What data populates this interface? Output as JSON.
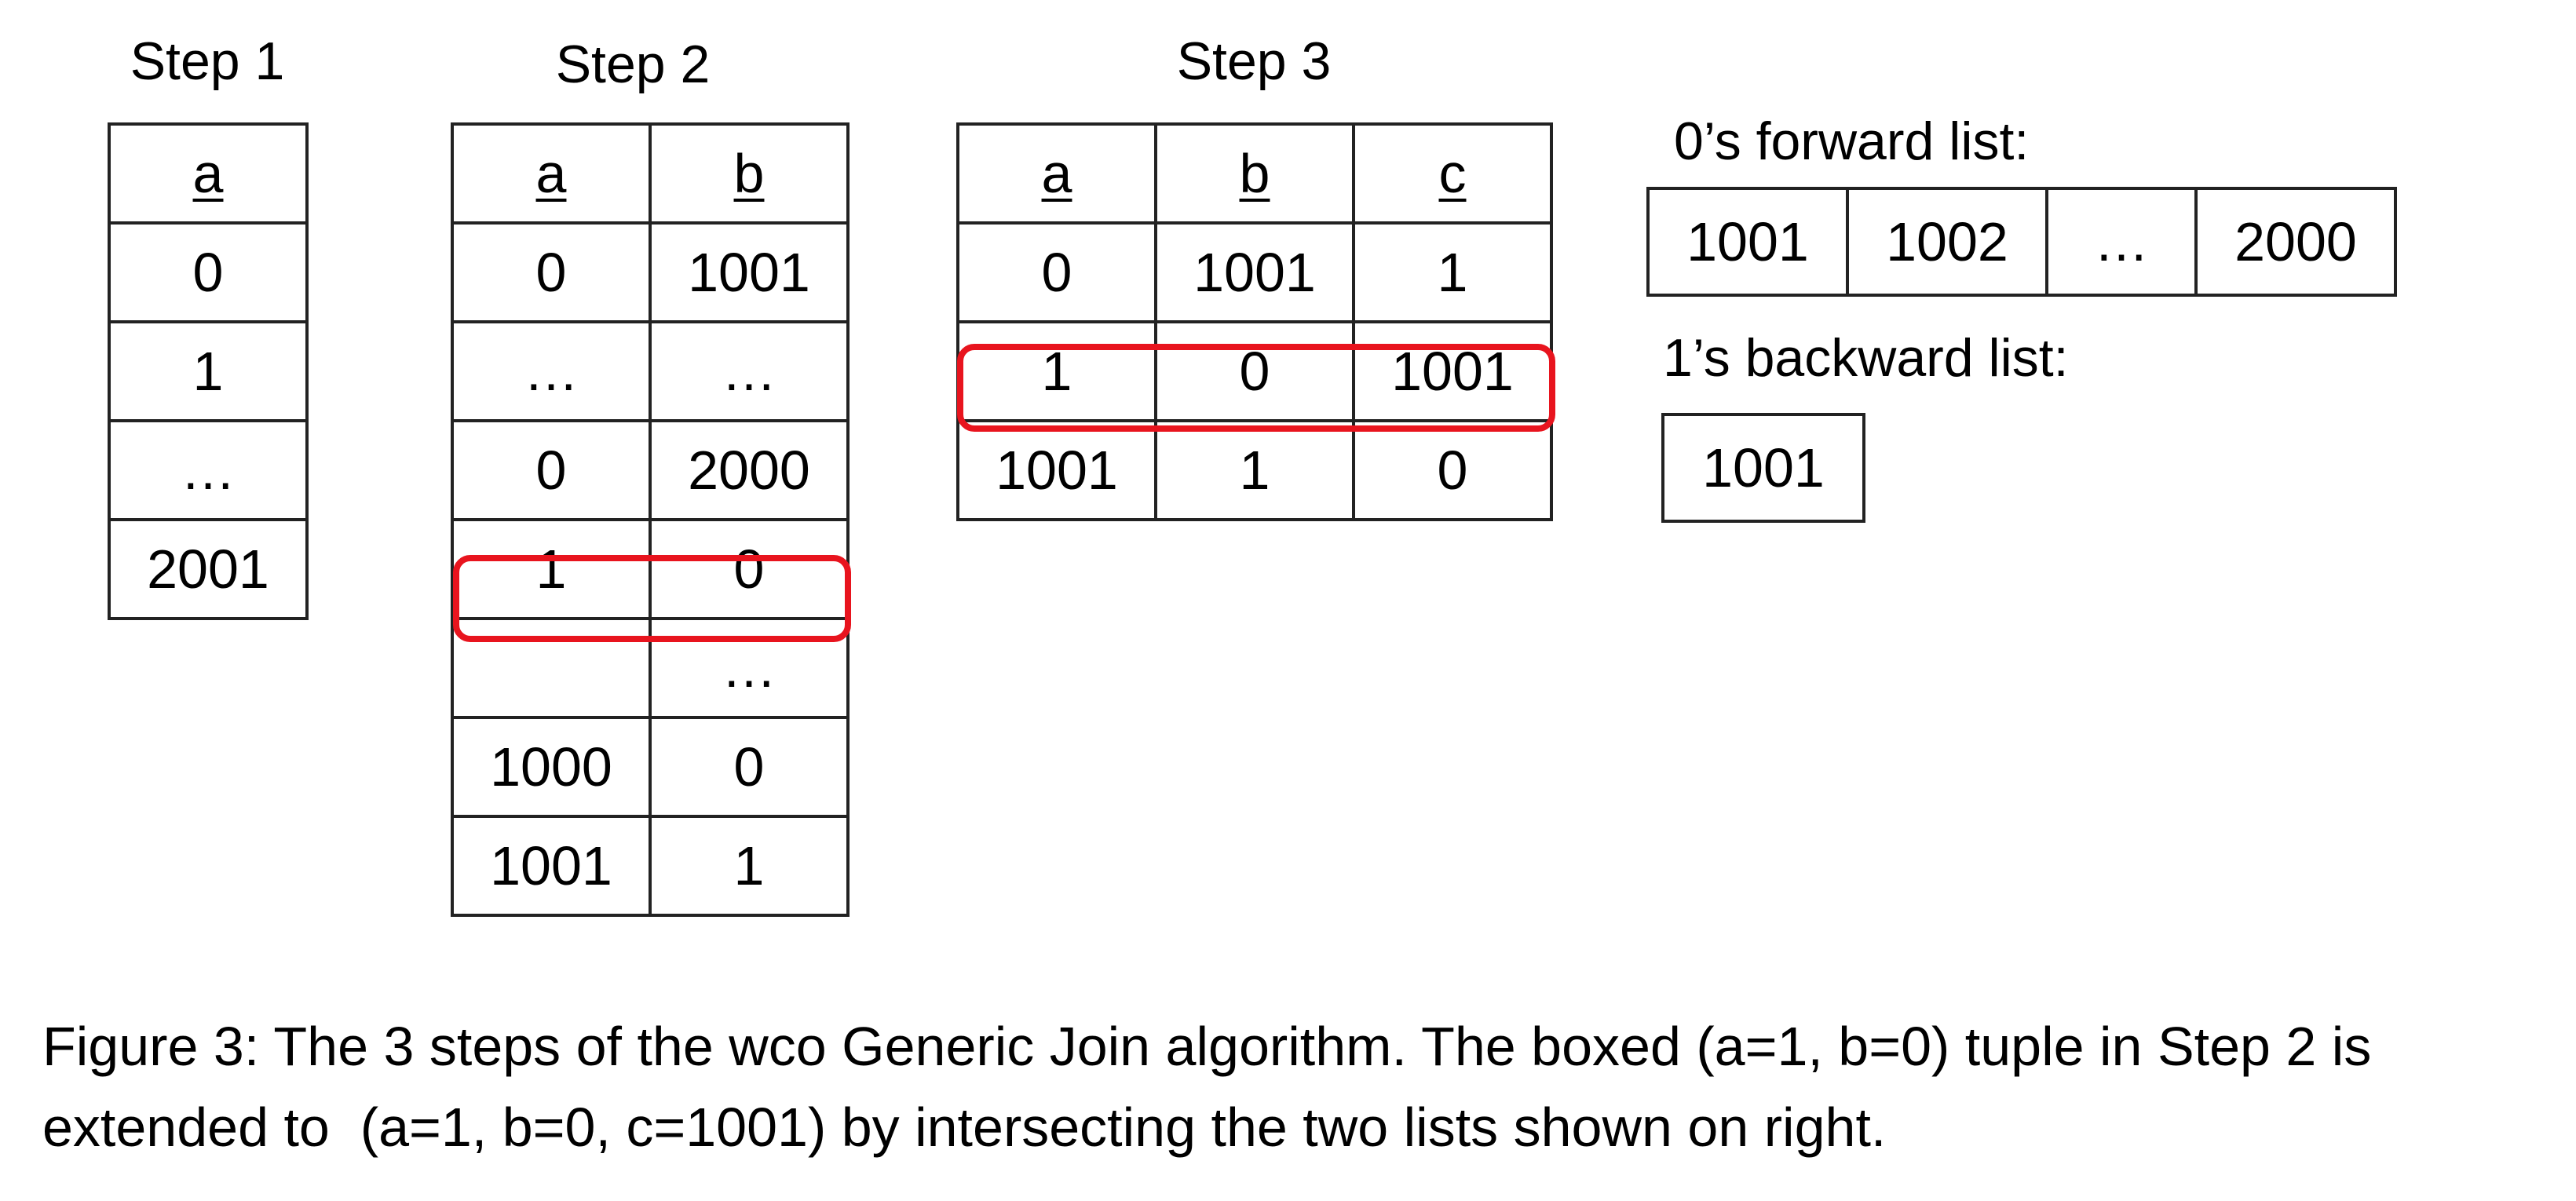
{
  "step1": {
    "title": "Step 1",
    "header": "a",
    "rows": [
      "0",
      "1",
      "…",
      "2001"
    ]
  },
  "step2": {
    "title": "Step 2",
    "headers": [
      "a",
      "b"
    ],
    "rows": [
      [
        "0",
        "1001"
      ],
      [
        "…",
        "…"
      ],
      [
        "0",
        "2000"
      ],
      [
        "1",
        "0"
      ],
      [
        "",
        "…"
      ],
      [
        "1000",
        "0"
      ],
      [
        "1001",
        "1"
      ]
    ],
    "highlighted_row": 3
  },
  "step3": {
    "title": "Step 3",
    "headers": [
      "a",
      "b",
      "c"
    ],
    "rows": [
      [
        "0",
        "1001",
        "1"
      ],
      [
        "1",
        "0",
        "1001"
      ],
      [
        "1001",
        "1",
        "0"
      ]
    ],
    "highlighted_row": 1
  },
  "forward_list": {
    "label": "0’s forward list:",
    "items": [
      "1001",
      "1002",
      "…",
      "2000"
    ]
  },
  "backward_list": {
    "label": "1’s backward list:",
    "items": [
      "1001"
    ]
  },
  "caption": {
    "line1": "Figure 3: The 3 steps of the wco Generic Join algorithm. The boxed (a=1, b=0) tuple in Step 2 is",
    "line2": "extended to  (a=1, b=0, c=1001) by intersecting the two lists shown on right."
  },
  "colors": {
    "highlight": "#e8141e",
    "border": "#222222"
  }
}
